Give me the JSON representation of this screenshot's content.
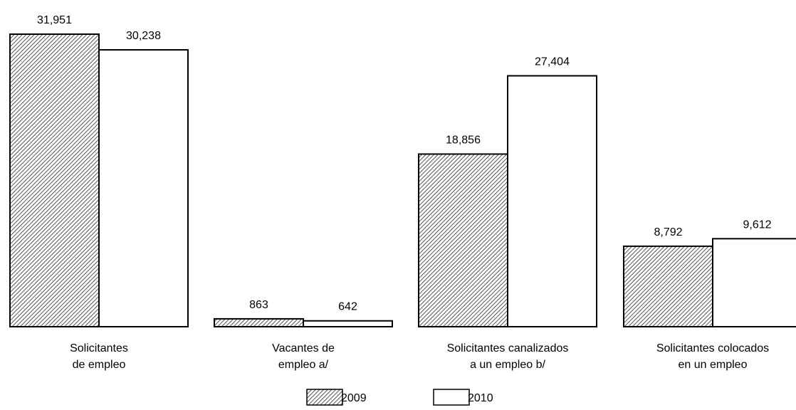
{
  "chart_data": {
    "type": "bar",
    "categories": [
      [
        "Solicitantes",
        "de empleo"
      ],
      [
        "Vacantes de",
        "empleo a/"
      ],
      [
        "Solicitantes canalizados",
        "a un empleo b/"
      ],
      [
        "Solicitantes colocados",
        "en un empleo"
      ]
    ],
    "series": [
      {
        "name": "2009",
        "fill": "hatch",
        "values": [
          31951,
          863,
          18856,
          8792
        ],
        "labels": [
          "31,951",
          "863",
          "18,856",
          "8,792"
        ]
      },
      {
        "name": "2010",
        "fill": "#ffffff",
        "values": [
          30238,
          642,
          27404,
          9612
        ],
        "labels": [
          "30,238",
          "642",
          "27,404",
          "9,612"
        ]
      }
    ],
    "ylim": [
      0,
      31951
    ],
    "grid": false,
    "legend": "bottom-center",
    "colors": {
      "stroke": "#000000",
      "hatch_background": "#ffffff",
      "hatch_line": "#555555"
    }
  }
}
